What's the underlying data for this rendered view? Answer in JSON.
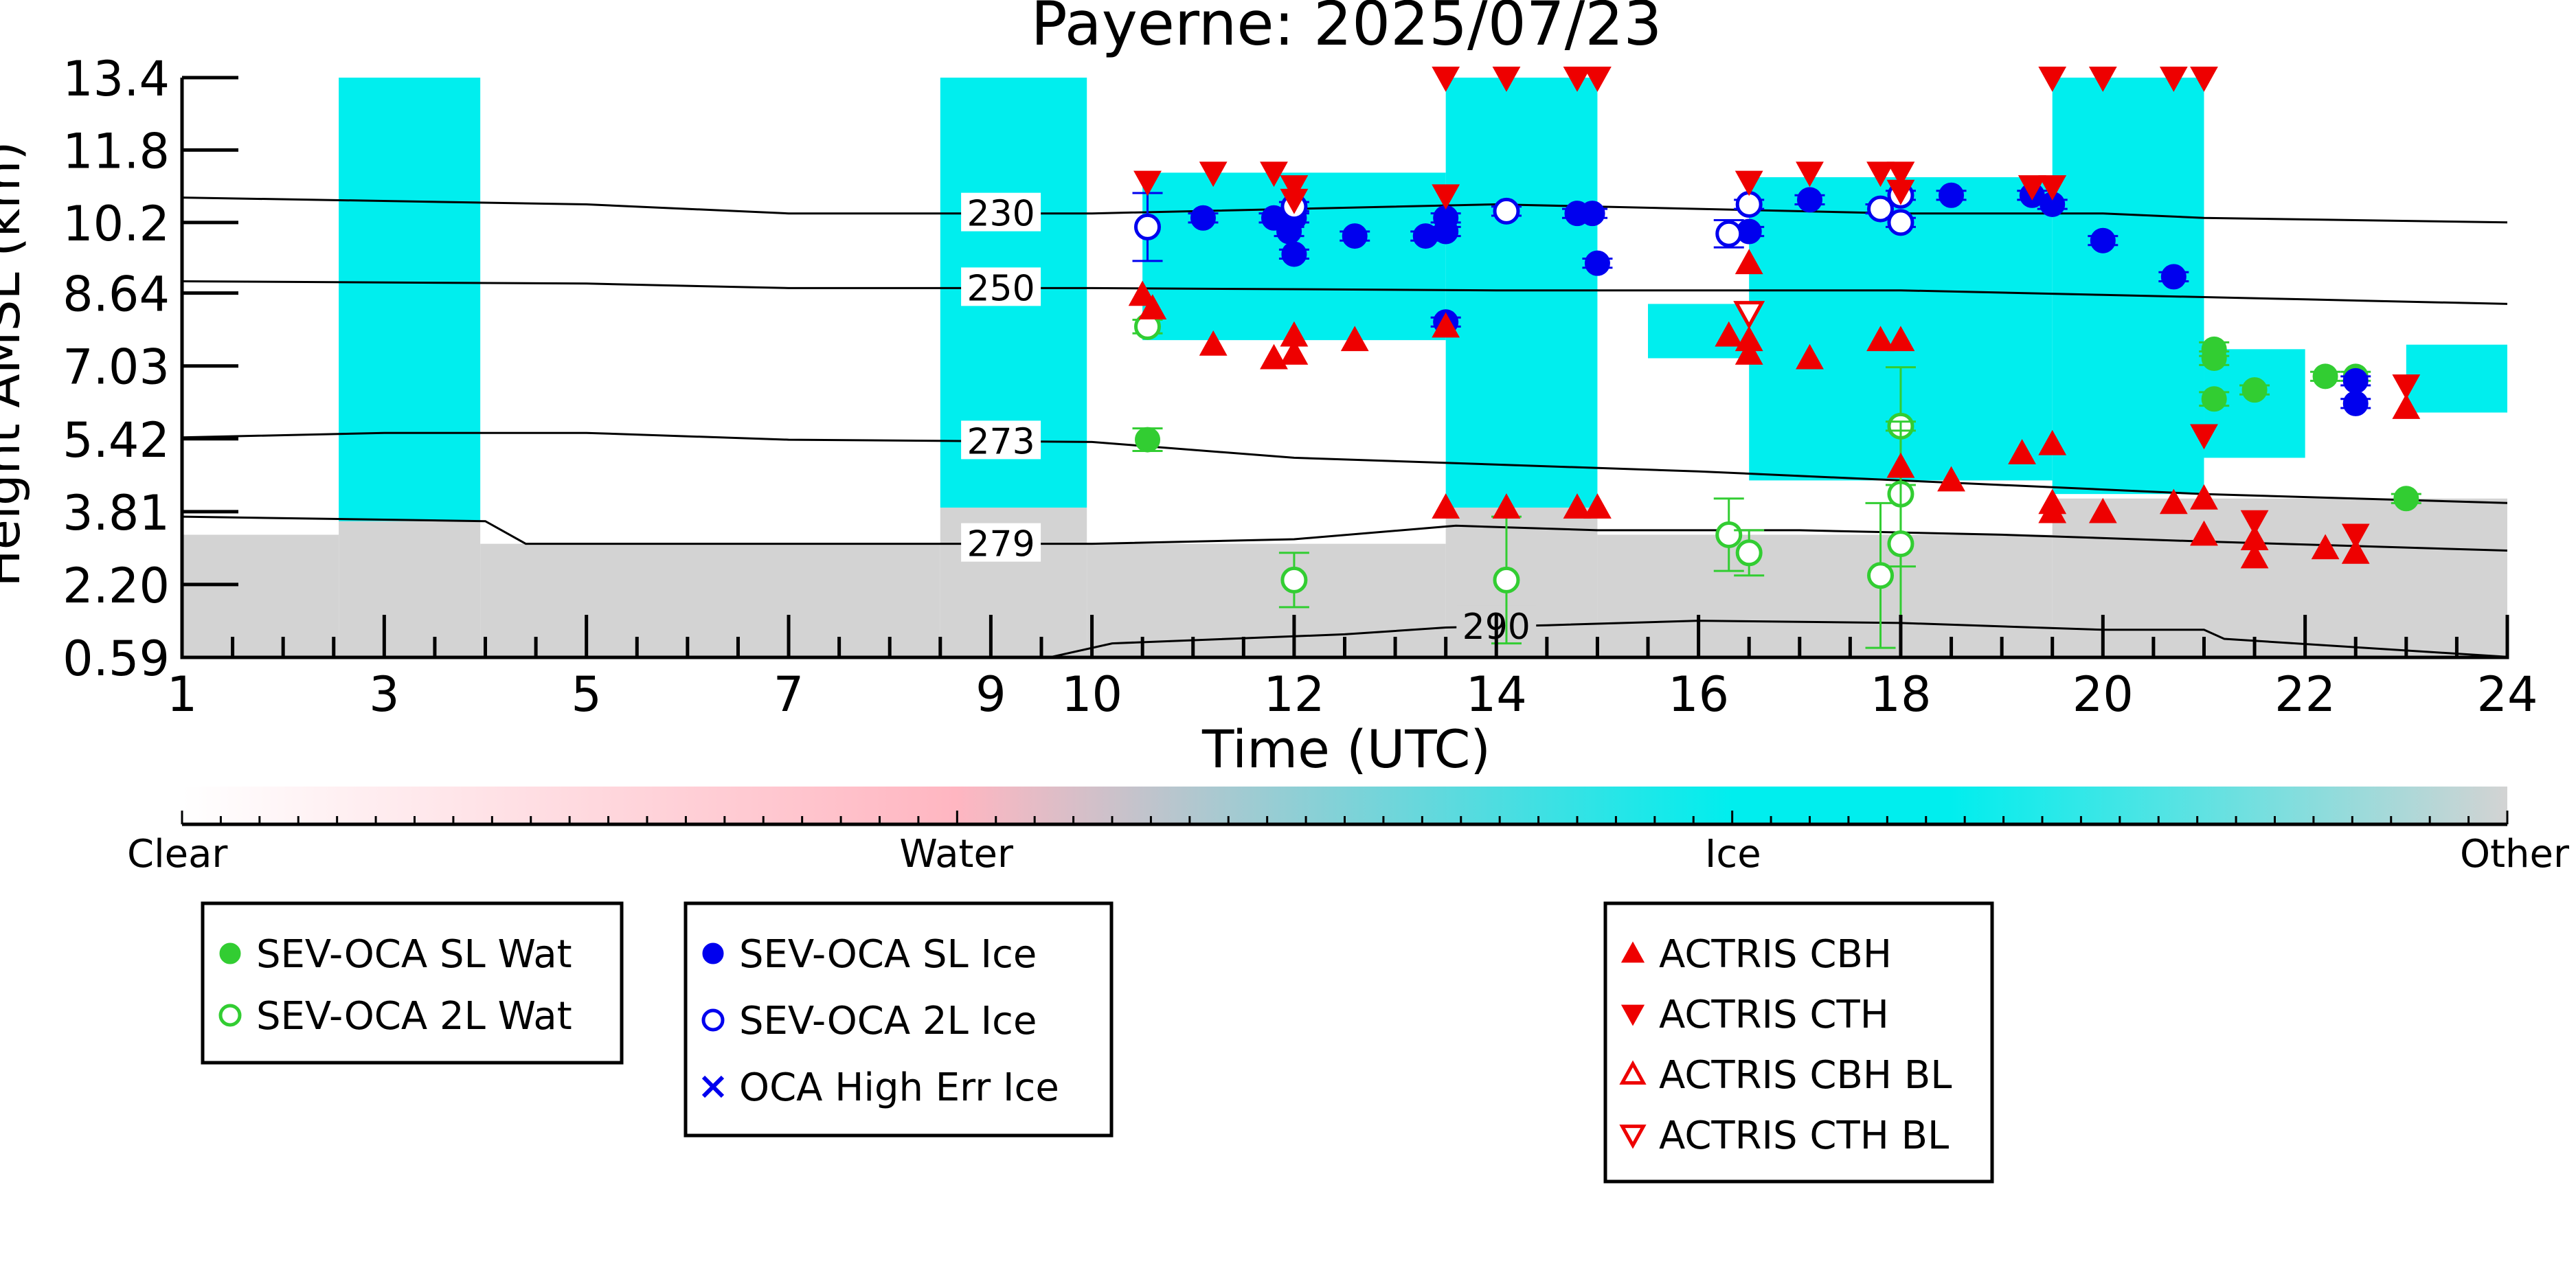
{
  "chart_data": {
    "type": "scatter",
    "title": "Payerne: 2025/07/23",
    "xlabel": "Time (UTC)",
    "ylabel": "Height AMSL (km)",
    "xlim": [
      1,
      24
    ],
    "ylim": [
      0.59,
      13.4
    ],
    "x_ticks": [
      1,
      3,
      5,
      7,
      9,
      10,
      12,
      14,
      16,
      18,
      20,
      22,
      24
    ],
    "y_ticks": [
      0.59,
      2.2,
      3.81,
      5.42,
      7.03,
      8.64,
      10.2,
      11.8,
      13.4
    ],
    "y_tick_labels": [
      "0.59",
      "2.20",
      "3.81",
      "5.42",
      "7.03",
      "8.64",
      "10.2",
      "11.8",
      "13.4"
    ],
    "colors": {
      "clear": "#ffffff",
      "water": "#ffb6c1",
      "ice": "#00eeee",
      "other": "#d3d3d3",
      "sl_wat": "#32cd32",
      "ice_marker": "#0000ee",
      "actris": "#ee0000"
    },
    "colorbar": {
      "labels": [
        "Clear",
        "Water",
        "Ice",
        "Other"
      ]
    },
    "classification_regions": [
      {
        "class": "ice",
        "x": [
          2.55,
          3.95
        ],
        "y": [
          3.6,
          13.4
        ]
      },
      {
        "class": "other",
        "x": [
          1.0,
          2.55
        ],
        "y": [
          0.59,
          3.3
        ]
      },
      {
        "class": "other",
        "x": [
          2.55,
          3.95
        ],
        "y": [
          0.59,
          3.6
        ]
      },
      {
        "class": "other",
        "x": [
          3.95,
          8.5
        ],
        "y": [
          0.59,
          3.1
        ]
      },
      {
        "class": "ice",
        "x": [
          8.5,
          9.95
        ],
        "y": [
          3.9,
          13.4
        ]
      },
      {
        "class": "other",
        "x": [
          8.5,
          9.95
        ],
        "y": [
          0.59,
          3.9
        ]
      },
      {
        "class": "other",
        "x": [
          9.95,
          13.5
        ],
        "y": [
          0.59,
          3.1
        ]
      },
      {
        "class": "ice",
        "x": [
          10.5,
          13.5
        ],
        "y": [
          7.6,
          11.3
        ]
      },
      {
        "class": "ice",
        "x": [
          13.5,
          15.0
        ],
        "y": [
          3.9,
          13.4
        ]
      },
      {
        "class": "other",
        "x": [
          13.5,
          15.0
        ],
        "y": [
          0.59,
          3.9
        ]
      },
      {
        "class": "other",
        "x": [
          15.0,
          19.5
        ],
        "y": [
          0.59,
          3.3
        ]
      },
      {
        "class": "ice",
        "x": [
          16.5,
          19.5
        ],
        "y": [
          4.5,
          11.2
        ]
      },
      {
        "class": "ice",
        "x": [
          15.5,
          16.5
        ],
        "y": [
          7.2,
          8.4
        ]
      },
      {
        "class": "ice",
        "x": [
          19.5,
          21.0
        ],
        "y": [
          4.2,
          13.4
        ]
      },
      {
        "class": "other",
        "x": [
          19.5,
          24.0
        ],
        "y": [
          0.59,
          4.1
        ]
      },
      {
        "class": "ice",
        "x": [
          21.0,
          22.0
        ],
        "y": [
          5.0,
          7.4
        ]
      },
      {
        "class": "ice",
        "x": [
          23.0,
          24.0
        ],
        "y": [
          6.0,
          7.5
        ]
      }
    ],
    "isotherms": [
      {
        "label": "230",
        "label_x": 9.1,
        "points": [
          [
            1,
            10.75
          ],
          [
            5,
            10.6
          ],
          [
            7,
            10.4
          ],
          [
            10,
            10.4
          ],
          [
            14,
            10.6
          ],
          [
            16,
            10.5
          ],
          [
            18,
            10.4
          ],
          [
            20,
            10.4
          ],
          [
            21,
            10.3
          ],
          [
            24,
            10.2
          ]
        ]
      },
      {
        "label": "250",
        "label_x": 9.1,
        "points": [
          [
            1,
            8.9
          ],
          [
            5,
            8.85
          ],
          [
            7,
            8.75
          ],
          [
            10,
            8.75
          ],
          [
            14,
            8.7
          ],
          [
            18,
            8.7
          ],
          [
            20,
            8.6
          ],
          [
            22,
            8.5
          ],
          [
            24,
            8.4
          ]
        ]
      },
      {
        "label": "273",
        "label_x": 9.1,
        "points": [
          [
            1,
            5.45
          ],
          [
            3,
            5.55
          ],
          [
            5,
            5.55
          ],
          [
            7,
            5.4
          ],
          [
            10,
            5.35
          ],
          [
            12,
            5.0
          ],
          [
            16,
            4.7
          ],
          [
            18,
            4.5
          ],
          [
            20,
            4.3
          ],
          [
            21,
            4.2
          ],
          [
            24,
            4.0
          ]
        ]
      },
      {
        "label": "279",
        "label_x": 9.1,
        "points": [
          [
            1,
            3.7
          ],
          [
            4,
            3.6
          ],
          [
            4.4,
            3.1
          ],
          [
            7,
            3.1
          ],
          [
            10,
            3.1
          ],
          [
            12,
            3.2
          ],
          [
            13.6,
            3.5
          ],
          [
            15,
            3.4
          ],
          [
            17,
            3.4
          ],
          [
            19,
            3.3
          ],
          [
            21,
            3.15
          ],
          [
            24,
            2.95
          ]
        ]
      },
      {
        "label": "290",
        "label_x": 14.0,
        "points": [
          [
            8.3,
            0.59
          ],
          [
            9.6,
            0.6
          ],
          [
            10.2,
            0.9
          ],
          [
            12.5,
            1.1
          ],
          [
            13.5,
            1.25
          ],
          [
            14.5,
            1.3
          ],
          [
            16,
            1.4
          ],
          [
            18,
            1.35
          ],
          [
            20,
            1.2
          ],
          [
            21,
            1.2
          ],
          [
            21.2,
            1.0
          ],
          [
            24,
            0.6
          ]
        ]
      }
    ],
    "series": [
      {
        "name": "SEV-OCA SL Wat",
        "marker": "circle-filled",
        "color": "#32cd32",
        "points": [
          [
            10.55,
            5.4,
            0.25
          ],
          [
            21.1,
            7.4,
            0.15
          ],
          [
            21.1,
            7.2,
            0.15
          ],
          [
            21.1,
            6.3,
            0.15
          ],
          [
            21.5,
            6.5,
            0.1
          ],
          [
            22.2,
            6.8,
            0.1
          ],
          [
            22.5,
            6.8,
            0.1
          ],
          [
            23.0,
            4.1,
            0.1
          ]
        ]
      },
      {
        "name": "SEV-OCA 2L Wat",
        "marker": "circle-open",
        "color": "#32cd32",
        "points": [
          [
            10.55,
            7.9,
            0.15
          ],
          [
            12.0,
            2.3,
            0.6
          ],
          [
            14.1,
            2.3,
            1.4
          ],
          [
            16.3,
            3.3,
            0.8
          ],
          [
            16.5,
            2.9,
            0.5
          ],
          [
            17.8,
            2.4,
            1.6
          ],
          [
            18.0,
            5.7,
            1.3
          ],
          [
            18.0,
            4.2,
            1.6
          ],
          [
            18.0,
            3.1,
            2.5
          ]
        ]
      },
      {
        "name": "SEV-OCA SL Ice",
        "marker": "circle-filled",
        "color": "#0000ee",
        "points": [
          [
            11.1,
            10.3,
            0.1
          ],
          [
            11.8,
            10.3,
            0.1
          ],
          [
            11.95,
            10.0,
            0.1
          ],
          [
            12.0,
            9.5,
            0.1
          ],
          [
            12.0,
            10.3,
            0.1
          ],
          [
            12.6,
            9.9,
            0.1
          ],
          [
            13.3,
            9.9,
            0.1
          ],
          [
            13.5,
            10.0,
            0.1
          ],
          [
            13.5,
            10.3,
            0.1
          ],
          [
            13.5,
            8.0,
            0.1
          ],
          [
            14.8,
            10.4,
            0.1
          ],
          [
            14.95,
            10.4,
            0.1
          ],
          [
            15.0,
            9.3,
            0.1
          ],
          [
            16.5,
            10.0,
            0.1
          ],
          [
            17.1,
            10.7,
            0.1
          ],
          [
            18.5,
            10.8,
            0.1
          ],
          [
            19.3,
            10.8,
            0.1
          ],
          [
            19.5,
            10.6,
            0.1
          ],
          [
            20.0,
            9.8,
            0.1
          ],
          [
            20.7,
            9.0,
            0.1
          ],
          [
            22.5,
            6.7,
            0.1
          ],
          [
            22.5,
            6.2,
            0.1
          ]
        ]
      },
      {
        "name": "SEV-OCA 2L Ice",
        "marker": "circle-open",
        "color": "#0000ee",
        "points": [
          [
            10.55,
            10.1,
            0.75
          ],
          [
            12.0,
            10.55,
            0.1
          ],
          [
            14.1,
            10.45,
            0.1
          ],
          [
            16.3,
            9.95,
            0.3
          ],
          [
            16.5,
            10.6,
            0.1
          ],
          [
            17.8,
            10.5,
            0.1
          ],
          [
            18.0,
            10.8,
            0.1
          ],
          [
            18.0,
            10.2,
            0.1
          ]
        ]
      },
      {
        "name": "OCA High Err Ice",
        "marker": "cross",
        "color": "#0000ee",
        "points": []
      },
      {
        "name": "ACTRIS CBH",
        "marker": "triangle-up-filled",
        "color": "#ee0000",
        "points": [
          [
            10.5,
            8.6
          ],
          [
            10.6,
            8.3
          ],
          [
            11.2,
            7.5
          ],
          [
            11.8,
            7.2
          ],
          [
            12.0,
            7.3
          ],
          [
            12.0,
            7.7
          ],
          [
            12.6,
            7.6
          ],
          [
            13.5,
            3.9
          ],
          [
            13.5,
            7.9
          ],
          [
            14.1,
            3.9
          ],
          [
            14.8,
            3.9
          ],
          [
            15.0,
            3.9
          ],
          [
            16.3,
            7.7
          ],
          [
            16.5,
            7.3
          ],
          [
            16.5,
            7.6
          ],
          [
            16.5,
            9.3
          ],
          [
            17.1,
            7.2
          ],
          [
            17.8,
            7.6
          ],
          [
            18.0,
            7.6
          ],
          [
            18.0,
            4.8
          ],
          [
            18.5,
            4.5
          ],
          [
            19.2,
            5.1
          ],
          [
            19.5,
            5.3
          ],
          [
            19.5,
            4.0
          ],
          [
            19.5,
            3.8
          ],
          [
            20.0,
            3.8
          ],
          [
            20.7,
            4.0
          ],
          [
            21.0,
            4.1
          ],
          [
            21.0,
            3.3
          ],
          [
            21.5,
            3.2
          ],
          [
            21.5,
            2.8
          ],
          [
            22.2,
            3.0
          ],
          [
            22.5,
            2.9
          ],
          [
            23.0,
            6.1
          ]
        ]
      },
      {
        "name": "ACTRIS CTH",
        "marker": "triangle-down-filled",
        "color": "#ee0000",
        "points": [
          [
            10.55,
            11.1
          ],
          [
            11.2,
            11.3
          ],
          [
            11.8,
            11.3
          ],
          [
            12.0,
            11.0
          ],
          [
            12.0,
            10.7
          ],
          [
            13.5,
            10.8
          ],
          [
            13.5,
            13.4
          ],
          [
            14.1,
            13.4
          ],
          [
            14.8,
            13.4
          ],
          [
            15.0,
            13.4
          ],
          [
            16.5,
            11.1
          ],
          [
            17.1,
            11.3
          ],
          [
            17.8,
            11.3
          ],
          [
            18.0,
            11.3
          ],
          [
            18.0,
            10.9
          ],
          [
            19.3,
            11.0
          ],
          [
            19.5,
            11.0
          ],
          [
            19.5,
            13.4
          ],
          [
            20.0,
            13.4
          ],
          [
            20.7,
            13.4
          ],
          [
            21.0,
            13.4
          ],
          [
            21.0,
            5.5
          ],
          [
            21.5,
            3.6
          ],
          [
            22.5,
            3.3
          ],
          [
            23.0,
            6.6
          ]
        ]
      },
      {
        "name": "ACTRIS CBH BL",
        "marker": "triangle-up-open",
        "color": "#ee0000",
        "points": []
      },
      {
        "name": "ACTRIS CTH BL",
        "marker": "triangle-down-open",
        "color": "#ee0000",
        "points": [
          [
            16.5,
            8.2
          ]
        ]
      }
    ]
  }
}
